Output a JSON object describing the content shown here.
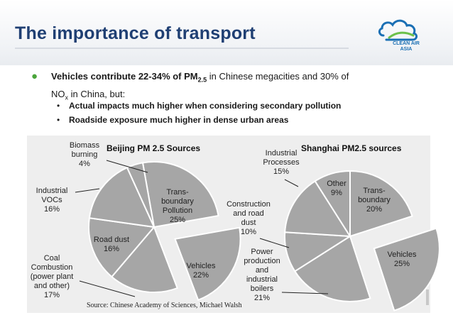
{
  "header": {
    "title": "The importance of transport",
    "logo_text_1": "CLEAN AIR",
    "logo_text_2": "ASIA"
  },
  "colors": {
    "title": "#1f3f73",
    "bullet": "#4aa53b",
    "pie_fill": "#a6a6a6",
    "pie_edge": "#ffffff",
    "logo_blue": "#1a6fb4",
    "logo_green": "#6cc04a"
  },
  "bullets": {
    "main_bold": "Vehicles contribute 22-34% of PM",
    "main_sub": "2.5",
    "main_rest": " in Chinese megacities and 30% of",
    "line2_a": "NO",
    "line2_sub": "x",
    "line2_b": " in China, but:",
    "sub1": "Actual impacts much higher when considering secondary pollution",
    "sub2": "Roadside exposure much higher in dense urban areas"
  },
  "source": "Source: Chinese Academy of Sciences, Michael Walsh",
  "chart_data": [
    {
      "type": "pie",
      "title": "Beijing PM 2.5 Sources",
      "slices": [
        {
          "label": [
            "Trans-",
            "boundary",
            "Pollution",
            "25%"
          ],
          "name": "Trans-boundary Pollution",
          "value": 25,
          "exploded": false
        },
        {
          "label": [
            "Vehicles",
            "22%"
          ],
          "name": "Vehicles",
          "value": 22,
          "exploded": true
        },
        {
          "label": [
            "Coal",
            "Combustion",
            "(power plant",
            "and other)",
            "17%"
          ],
          "name": "Coal Combustion (power plant and other)",
          "value": 17,
          "exploded": false
        },
        {
          "label": [
            "Road dust",
            "16%"
          ],
          "name": "Road dust",
          "value": 16,
          "exploded": false
        },
        {
          "label": [
            "Industrial",
            "VOCs",
            "16%"
          ],
          "name": "Industrial VOCs",
          "value": 16,
          "exploded": false
        },
        {
          "label": [
            "Biomass",
            "burning",
            "4%"
          ],
          "name": "Biomass burning",
          "value": 4,
          "exploded": false
        }
      ]
    },
    {
      "type": "pie",
      "title": "Shanghai PM2.5 sources",
      "slices": [
        {
          "label": [
            "Trans-",
            "boundary",
            "20%"
          ],
          "name": "Trans-boundary",
          "value": 20,
          "exploded": false
        },
        {
          "label": [
            "Vehicles",
            "25%"
          ],
          "name": "Vehicles",
          "value": 25,
          "exploded": true
        },
        {
          "label": [
            "Power",
            "production",
            "and",
            "industrial",
            "boilers",
            "21%"
          ],
          "name": "Power production and industrial boilers",
          "value": 21,
          "exploded": false
        },
        {
          "label": [
            "Construction",
            "and road",
            "dust",
            "10%"
          ],
          "name": "Construction and road dust",
          "value": 10,
          "exploded": false
        },
        {
          "label": [
            "Industrial",
            "Processes",
            "15%"
          ],
          "name": "Industrial Processes",
          "value": 15,
          "exploded": false
        },
        {
          "label": [
            "Other",
            "9%"
          ],
          "name": "Other",
          "value": 9,
          "exploded": false
        }
      ]
    }
  ]
}
